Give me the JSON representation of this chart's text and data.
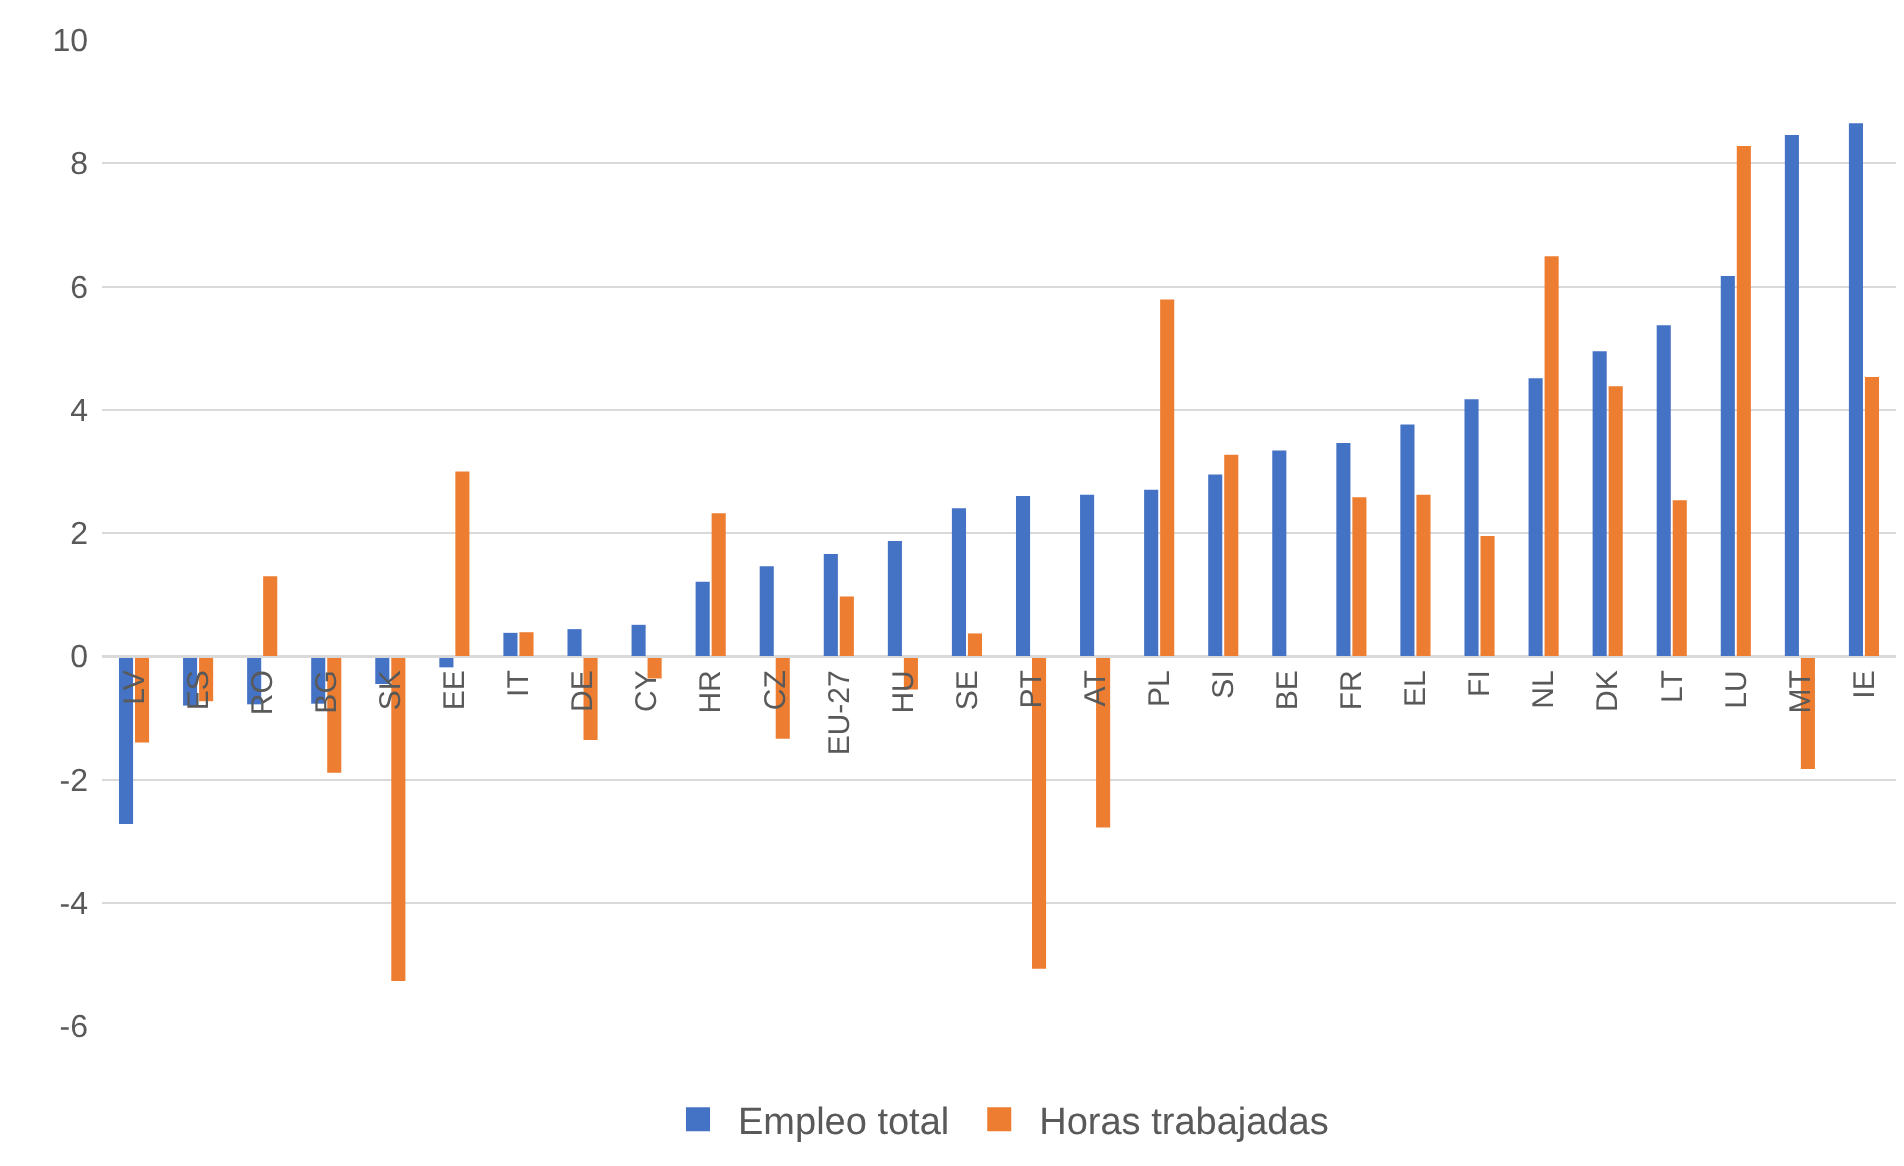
{
  "chart_data": {
    "type": "bar",
    "categories": [
      "LV",
      "ES",
      "RO",
      "BG",
      "SK",
      "EE",
      "IT",
      "DE",
      "CY",
      "HR",
      "CZ",
      "EU-27",
      "HU",
      "SE",
      "PT",
      "AT",
      "PL",
      "SI",
      "BE",
      "FR",
      "EL",
      "FI",
      "NL",
      "DK",
      "LT",
      "LU",
      "MT",
      "IE"
    ],
    "series": [
      {
        "name": "Empleo total",
        "color": "#4472c4",
        "values": [
          -2.72,
          -0.8,
          -0.78,
          -0.77,
          -0.45,
          -0.18,
          0.38,
          0.44,
          0.51,
          1.21,
          1.46,
          1.66,
          1.87,
          2.4,
          2.6,
          2.62,
          2.7,
          2.95,
          3.34,
          3.46,
          3.76,
          4.17,
          4.51,
          4.95,
          5.37,
          6.17,
          8.46,
          8.65
        ]
      },
      {
        "name": "Horas trabajadas",
        "color": "#ed7d31",
        "values": [
          -1.4,
          -0.73,
          1.3,
          -1.89,
          -5.27,
          3.0,
          0.39,
          -1.36,
          -0.36,
          2.32,
          -1.34,
          0.97,
          -0.54,
          0.37,
          -5.07,
          -2.78,
          5.79,
          3.27,
          null,
          2.58,
          2.62,
          1.95,
          6.49,
          4.38,
          2.53,
          8.28,
          -1.83,
          4.53
        ]
      }
    ],
    "ylim": [
      -6,
      10
    ],
    "yticks": [
      -6,
      -4,
      -2,
      0,
      2,
      4,
      6,
      8,
      10
    ],
    "grid": "y",
    "legend": "bottom"
  }
}
